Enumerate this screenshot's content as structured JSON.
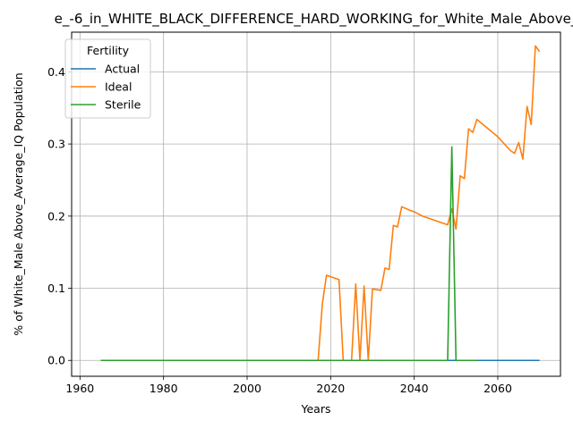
{
  "chart_data": {
    "type": "line",
    "title": "e_-6_in_WHITE_BLACK_DIFFERENCE_HARD_WORKING_for_White_Male_Above_",
    "xlabel": "Years",
    "ylabel": "% of White_Male Above_Average_IQ Population",
    "xlim": [
      1958,
      2075
    ],
    "ylim": [
      -0.022,
      0.455
    ],
    "x_ticks": [
      1960,
      1980,
      2000,
      2020,
      2040,
      2060
    ],
    "y_ticks": [
      0.0,
      0.1,
      0.2,
      0.3,
      0.4
    ],
    "x_tick_labels": [
      "1960",
      "1980",
      "2000",
      "2020",
      "2040",
      "2060"
    ],
    "y_tick_labels": [
      "0.0",
      "0.1",
      "0.2",
      "0.3",
      "0.4"
    ],
    "grid": true,
    "legend": {
      "title": "Fertility",
      "placement": "top-left"
    },
    "series": [
      {
        "name": "Actual",
        "color": "#1f77b4",
        "x": [
          1965,
          2070
        ],
        "y": [
          0.0,
          0.0
        ]
      },
      {
        "name": "Ideal",
        "color": "#ff7f0e",
        "x": [
          1965,
          2017,
          2018,
          2019,
          2022,
          2023,
          2025,
          2026,
          2027,
          2028,
          2029,
          2030,
          2032,
          2033,
          2034,
          2035,
          2036,
          2037,
          2039,
          2040,
          2042,
          2048,
          2049,
          2050,
          2051,
          2052,
          2053,
          2054,
          2055,
          2060,
          2063,
          2064,
          2065,
          2066,
          2067,
          2068,
          2069,
          2070
        ],
        "y": [
          0.0,
          0.0,
          0.078,
          0.118,
          0.112,
          0.0,
          0.0,
          0.106,
          0.0,
          0.103,
          0.0,
          0.099,
          0.097,
          0.128,
          0.126,
          0.187,
          0.185,
          0.213,
          0.208,
          0.206,
          0.2,
          0.188,
          0.21,
          0.182,
          0.256,
          0.252,
          0.321,
          0.316,
          0.334,
          0.31,
          0.291,
          0.287,
          0.302,
          0.279,
          0.352,
          0.327,
          0.436,
          0.428
        ]
      },
      {
        "name": "Sterile",
        "color": "#2ca02c",
        "x": [
          1965,
          2048,
          2049,
          2050,
          2055
        ],
        "y": [
          0.0,
          0.0,
          0.296,
          0.0,
          0.0
        ]
      }
    ]
  }
}
